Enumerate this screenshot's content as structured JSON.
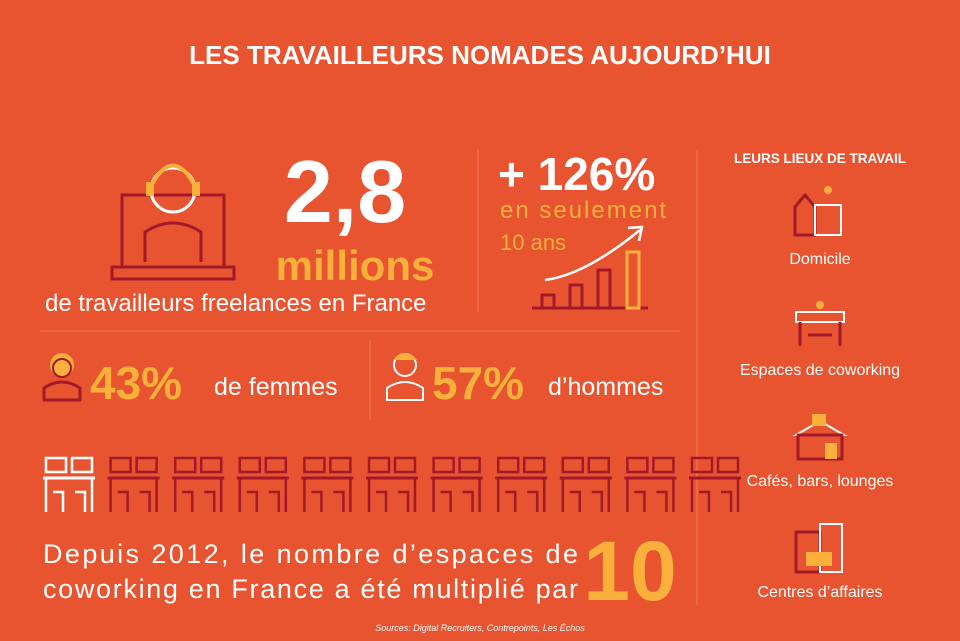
{
  "header": {
    "title": "LES TRAVAILLEURS NOMADES AUJOURD’HUI"
  },
  "freelances": {
    "number": "2,8",
    "unit": "millions",
    "caption": "de travailleurs freelances en France"
  },
  "growth": {
    "number": "+ 126%",
    "line1": "en seulement",
    "line2": "10 ans"
  },
  "gender": {
    "women_pct": "43%",
    "women_label": "de femmes",
    "men_pct": "57%",
    "men_label": "d’hommes"
  },
  "coworking": {
    "lines": [
      "Depuis 2012, le nombre d’espaces de",
      "coworking en France a été multiplié par"
    ],
    "factor": "10"
  },
  "places": {
    "title": "LEURS LIEUX DE TRAVAIL",
    "items": [
      "Domicile",
      "Espaces de coworking",
      "Cafés, bars, lounges",
      "Centres d’affaires"
    ]
  },
  "sources": "Sources: Digital Recruiters, Contrepoints, Les Échos"
}
